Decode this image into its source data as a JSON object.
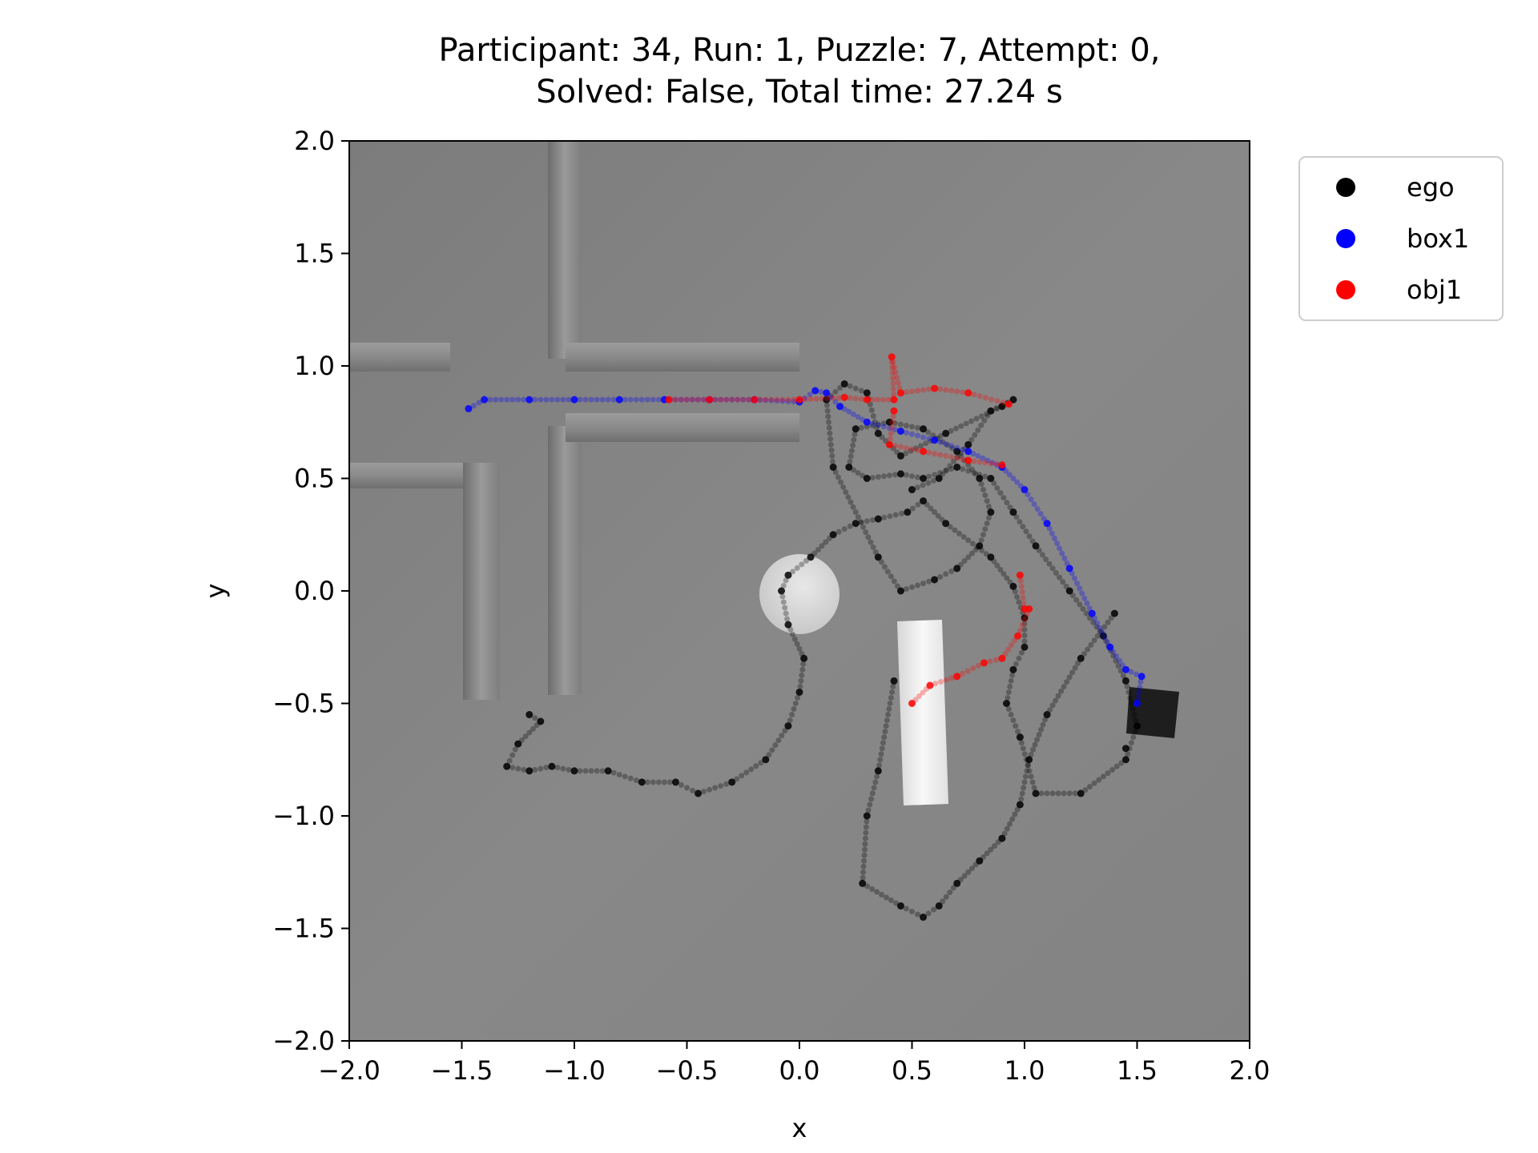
{
  "chart_data": {
    "type": "scatter",
    "title_line1": "Participant: 34, Run: 1, Puzzle: 7, Attempt: 0,",
    "title_line2": "Solved: False, Total time: 27.24 s",
    "xlabel": "x",
    "ylabel": "y",
    "xlim": [
      -2.0,
      2.0
    ],
    "ylim": [
      -2.0,
      2.0
    ],
    "xticks": [
      -2.0,
      -1.5,
      -1.0,
      -0.5,
      0.0,
      0.5,
      1.0,
      1.5,
      2.0
    ],
    "yticks": [
      -2.0,
      -1.5,
      -1.0,
      -0.5,
      0.0,
      0.5,
      1.0,
      1.5,
      2.0
    ],
    "xtick_labels": [
      "−2.0",
      "−1.5",
      "−1.0",
      "−0.5",
      "0.0",
      "0.5",
      "1.0",
      "1.5",
      "2.0"
    ],
    "ytick_labels": [
      "−2.0",
      "−1.5",
      "−1.0",
      "−0.5",
      "0.0",
      "0.5",
      "1.0",
      "1.5",
      "2.0"
    ],
    "grid": false,
    "legend_placement": "outside-top-right",
    "background_image": "top-down grey scene render (walls, disk, bar, dark box)",
    "series": [
      {
        "name": "ego",
        "color": "#000000",
        "x": [
          -1.2,
          -1.15,
          -1.25,
          -1.3,
          -1.2,
          -1.1,
          -1.0,
          -0.85,
          -0.7,
          -0.55,
          -0.45,
          -0.3,
          -0.15,
          -0.05,
          0.0,
          0.02,
          -0.05,
          -0.08,
          -0.05,
          0.05,
          0.15,
          0.25,
          0.35,
          0.48,
          0.55,
          0.65,
          0.85,
          0.95,
          1.0,
          1.0,
          0.95,
          0.92,
          0.98,
          1.05,
          1.25,
          1.45,
          1.5,
          1.45,
          1.35,
          1.2,
          1.05,
          0.95,
          0.85,
          0.7,
          0.55,
          0.45,
          0.3,
          0.22,
          0.25,
          0.4,
          0.55,
          0.7,
          0.8,
          0.85,
          0.8,
          0.7,
          0.6,
          0.45,
          0.35,
          0.15,
          0.12,
          0.2,
          0.3,
          0.35,
          0.45,
          0.65,
          0.9,
          0.95,
          0.85,
          0.75,
          0.62,
          0.5,
          0.42,
          0.35,
          0.3,
          0.28,
          0.45,
          0.55,
          0.62,
          0.7,
          0.8,
          0.9,
          0.98,
          1.02,
          1.1,
          1.25,
          1.4,
          1.45
        ],
        "y": [
          -0.55,
          -0.58,
          -0.68,
          -0.78,
          -0.8,
          -0.78,
          -0.8,
          -0.8,
          -0.85,
          -0.85,
          -0.9,
          -0.85,
          -0.75,
          -0.6,
          -0.45,
          -0.3,
          -0.15,
          0.0,
          0.07,
          0.15,
          0.25,
          0.3,
          0.32,
          0.35,
          0.4,
          0.3,
          0.15,
          0.02,
          -0.12,
          -0.25,
          -0.35,
          -0.5,
          -0.65,
          -0.9,
          -0.9,
          -0.75,
          -0.6,
          -0.4,
          -0.2,
          0.0,
          0.2,
          0.35,
          0.5,
          0.55,
          0.5,
          0.52,
          0.5,
          0.55,
          0.72,
          0.75,
          0.72,
          0.62,
          0.5,
          0.35,
          0.2,
          0.1,
          0.05,
          0.0,
          0.15,
          0.55,
          0.85,
          0.92,
          0.88,
          0.7,
          0.6,
          0.7,
          0.82,
          0.85,
          0.8,
          0.65,
          0.5,
          0.45,
          -0.4,
          -0.8,
          -1.0,
          -1.3,
          -1.4,
          -1.45,
          -1.4,
          -1.3,
          -1.2,
          -1.1,
          -0.95,
          -0.75,
          -0.55,
          -0.3,
          -0.1,
          -0.7
        ]
      },
      {
        "name": "box1",
        "color": "#0000ff",
        "x": [
          -1.47,
          -1.4,
          -1.2,
          -1.0,
          -0.8,
          -0.6,
          -0.4,
          -0.2,
          0.0,
          0.07,
          0.12,
          0.18,
          0.3,
          0.45,
          0.6,
          0.75,
          0.9,
          1.0,
          1.1,
          1.2,
          1.3,
          1.38,
          1.45,
          1.52,
          1.5
        ],
        "y": [
          0.81,
          0.85,
          0.85,
          0.85,
          0.85,
          0.85,
          0.85,
          0.85,
          0.84,
          0.89,
          0.88,
          0.82,
          0.75,
          0.71,
          0.67,
          0.62,
          0.55,
          0.45,
          0.3,
          0.1,
          -0.1,
          -0.25,
          -0.35,
          -0.38,
          -0.5
        ]
      },
      {
        "name": "obj1",
        "color": "#ff0000",
        "x": [
          -0.58,
          -0.4,
          -0.2,
          0.0,
          0.2,
          0.3,
          0.42,
          0.41,
          0.45,
          0.6,
          0.75,
          0.93,
          0.42,
          0.4,
          0.55,
          0.75,
          0.9,
          0.98,
          1.0,
          1.02,
          0.97,
          0.9,
          0.82,
          0.7,
          0.58,
          0.5
        ],
        "y": [
          0.85,
          0.85,
          0.85,
          0.85,
          0.86,
          0.85,
          0.85,
          1.04,
          0.88,
          0.9,
          0.88,
          0.83,
          0.8,
          0.65,
          0.62,
          0.58,
          0.56,
          0.07,
          -0.08,
          -0.08,
          -0.2,
          -0.3,
          -0.32,
          -0.38,
          -0.42,
          -0.5
        ]
      }
    ]
  }
}
